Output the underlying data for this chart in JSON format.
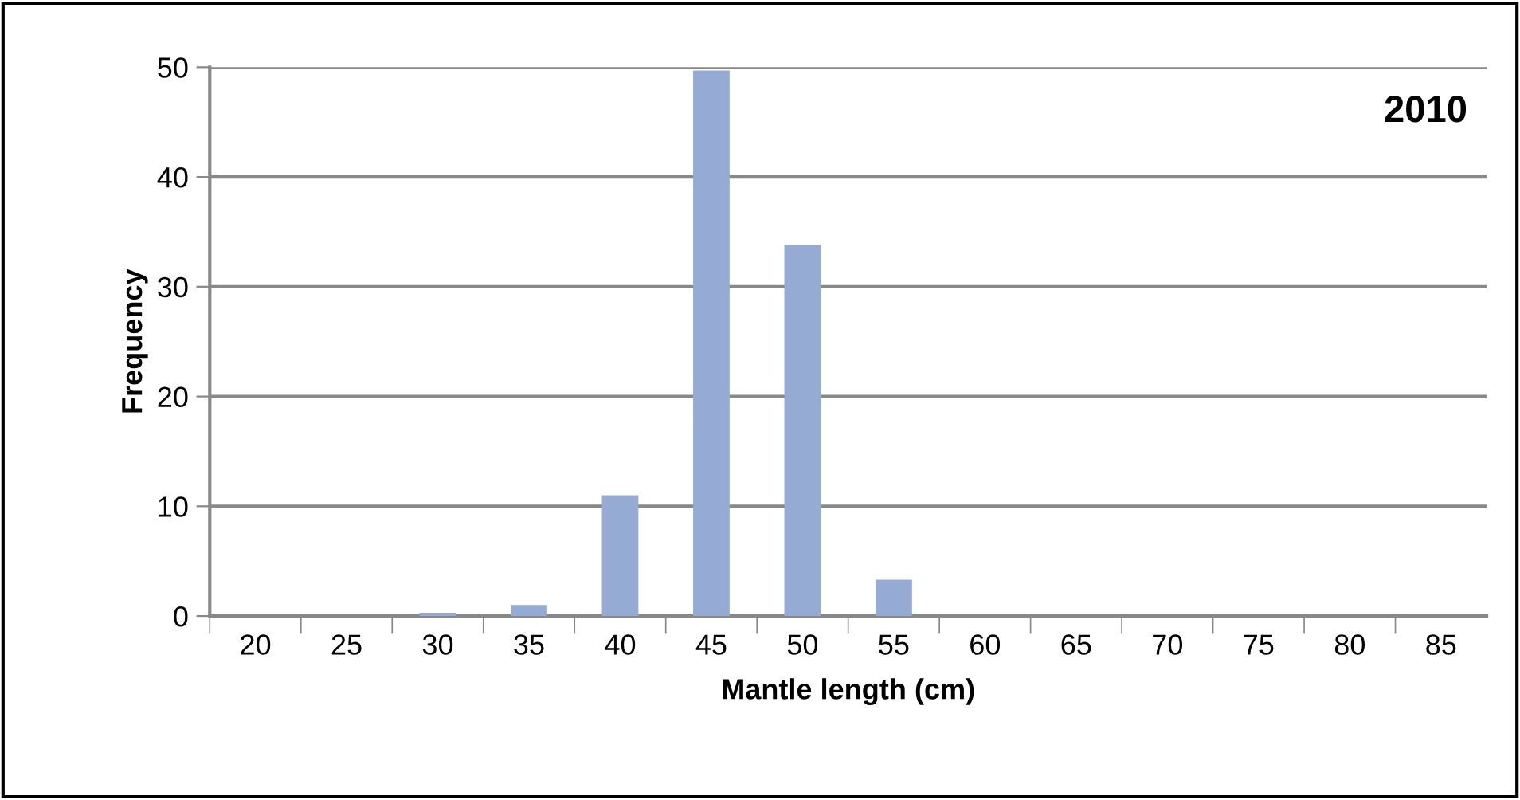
{
  "chart_data": {
    "type": "bar",
    "title": "2010",
    "xlabel": "Mantle length (cm)",
    "ylabel": "Frequency",
    "categories": [
      "20",
      "25",
      "30",
      "35",
      "40",
      "45",
      "50",
      "55",
      "60",
      "65",
      "70",
      "75",
      "80",
      "85"
    ],
    "values": [
      0,
      0,
      0.3,
      1,
      11,
      49.7,
      33.8,
      3.3,
      0,
      0,
      0,
      0,
      0,
      0
    ],
    "color": "#95abd3",
    "ylim": [
      0,
      50
    ],
    "yticks": [
      0,
      10,
      20,
      30,
      40,
      50
    ],
    "grid": "y",
    "legend": false
  }
}
